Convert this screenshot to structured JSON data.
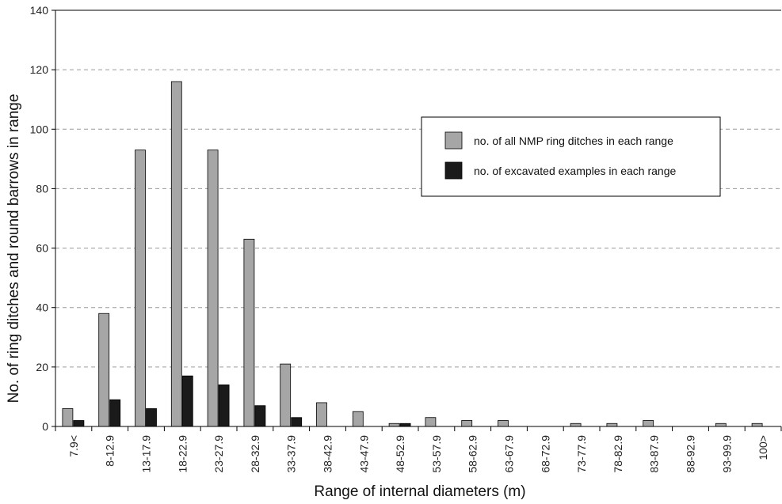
{
  "chart_data": {
    "type": "bar",
    "title": "",
    "xlabel": "Range of internal diameters (m)",
    "ylabel": "No. of ring ditches and round barrows in range",
    "ylim": [
      0,
      140
    ],
    "yticks": [
      0,
      20,
      40,
      60,
      80,
      100,
      120,
      140
    ],
    "grid": "horizontal-dashed",
    "legend_position": "top-right",
    "categories": [
      "7.9<",
      "8-12.9",
      "13-17.9",
      "18-22.9",
      "23-27.9",
      "28-32.9",
      "33-37.9",
      "38-42.9",
      "43-47.9",
      "48-52.9",
      "53-57.9",
      "58-62.9",
      "63-67.9",
      "68-72.9",
      "73-77.9",
      "78-82.9",
      "83-87.9",
      "88-92.9",
      "93-99.9",
      "100>"
    ],
    "series": [
      {
        "name": "no. of all NMP ring ditches in each range",
        "color": "#a6a6a6",
        "values": [
          6,
          38,
          93,
          116,
          93,
          63,
          21,
          8,
          5,
          1,
          3,
          2,
          2,
          0,
          1,
          1,
          2,
          0,
          1,
          1
        ]
      },
      {
        "name": "no. of excavated examples in each range",
        "color": "#1a1a1a",
        "values": [
          2,
          9,
          6,
          17,
          14,
          7,
          3,
          0,
          0,
          1,
          0,
          0,
          0,
          0,
          0,
          0,
          0,
          0,
          0,
          0
        ]
      }
    ]
  }
}
